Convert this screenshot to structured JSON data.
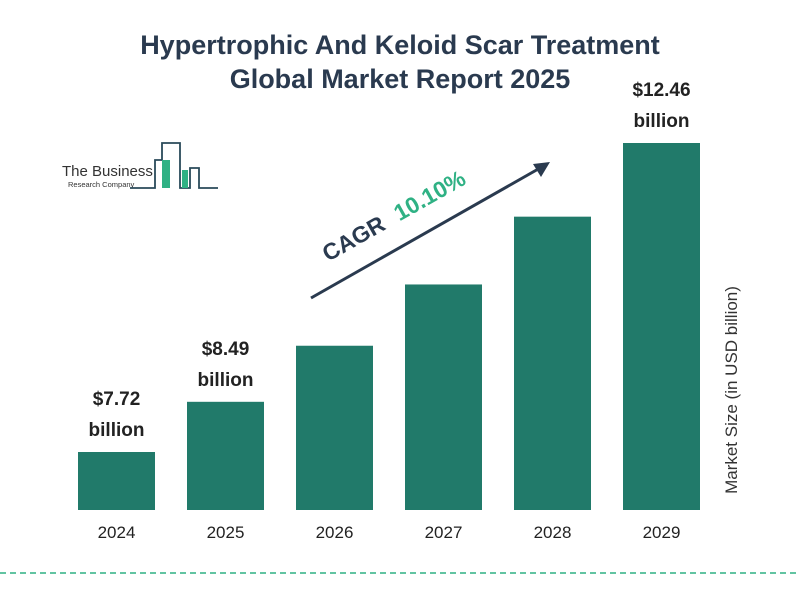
{
  "title_line1": "Hypertrophic And Keloid Scar Treatment",
  "title_line2": "Global Market Report 2025",
  "logo": {
    "line1": "The Business",
    "line2": "Research Company"
  },
  "cagr": {
    "label": "CAGR",
    "value": "10.10%"
  },
  "colors": {
    "bar": "#217a6a",
    "title": "#2a3a4f",
    "cagr": "#2fb184"
  },
  "chart_data": {
    "type": "bar",
    "categories": [
      "2024",
      "2025",
      "2026",
      "2027",
      "2028",
      "2029"
    ],
    "values": [
      7.72,
      8.49,
      9.35,
      10.29,
      11.33,
      12.46
    ],
    "data_labels": [
      {
        "index": 0,
        "line1": "$7.72",
        "line2": "billion"
      },
      {
        "index": 1,
        "line1": "$8.49",
        "line2": "billion"
      },
      {
        "index": 5,
        "line1": "$12.46",
        "line2": "billion"
      }
    ],
    "ylabel": "Market Size (in USD billion)",
    "xlabel": "",
    "grid": false
  }
}
